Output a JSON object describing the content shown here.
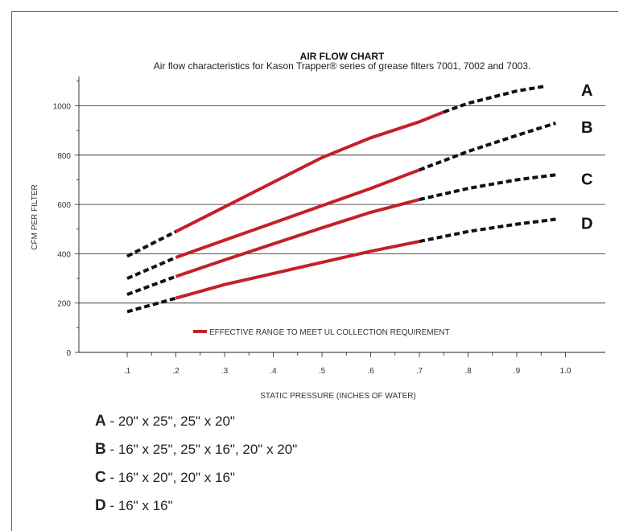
{
  "chart_data": {
    "type": "line",
    "title": "AIR FLOW CHART",
    "subtitle": "Air flow characteristics for Kason Trapper® series of grease filters 7001, 7002 and 7003.",
    "xlabel": "STATIC PRESSURE (INCHES OF WATER)",
    "ylabel": "CFM PER FILTER",
    "xlim": [
      0,
      1.1
    ],
    "ylim": [
      0,
      1100
    ],
    "x_ticks": [
      0.1,
      0.2,
      0.3,
      0.4,
      0.5,
      0.6,
      0.7,
      0.8,
      0.9,
      1.0
    ],
    "x_tick_labels": [
      ".1",
      ".2",
      ".3",
      ".4",
      ".5",
      ".6",
      ".7",
      ".8",
      ".9",
      "1.0"
    ],
    "y_ticks": [
      0,
      200,
      400,
      600,
      800,
      1000
    ],
    "y_tick_labels": [
      "0",
      "200",
      "400",
      "600",
      "800",
      "1000"
    ],
    "grid": "horizontal",
    "legend": {
      "placement": "bottom-center",
      "label": "EFFECTIVE RANGE TO MEET UL COLLECTION REQUIREMENT",
      "color": "#c4202a"
    },
    "line_colors": {
      "effective": "#c4202a",
      "extended": "#111111"
    },
    "series": [
      {
        "name": "A",
        "x": [
          0.1,
          0.2,
          0.3,
          0.4,
          0.5,
          0.6,
          0.7,
          0.75,
          0.8,
          0.9,
          0.96
        ],
        "y": [
          390,
          490,
          590,
          690,
          790,
          870,
          935,
          975,
          1010,
          1060,
          1080
        ],
        "effective_range": [
          0.2,
          0.75
        ]
      },
      {
        "name": "B",
        "x": [
          0.1,
          0.2,
          0.3,
          0.4,
          0.5,
          0.6,
          0.7,
          0.8,
          0.9,
          0.98
        ],
        "y": [
          300,
          385,
          455,
          525,
          595,
          665,
          740,
          815,
          880,
          930
        ],
        "effective_range": [
          0.2,
          0.7
        ]
      },
      {
        "name": "C",
        "x": [
          0.1,
          0.2,
          0.3,
          0.4,
          0.5,
          0.6,
          0.7,
          0.8,
          0.9,
          0.98
        ],
        "y": [
          235,
          308,
          375,
          440,
          505,
          568,
          620,
          665,
          700,
          720
        ],
        "effective_range": [
          0.2,
          0.7
        ]
      },
      {
        "name": "D",
        "x": [
          0.1,
          0.2,
          0.3,
          0.4,
          0.5,
          0.6,
          0.7,
          0.8,
          0.9,
          0.98
        ],
        "y": [
          165,
          220,
          275,
          320,
          365,
          410,
          450,
          490,
          520,
          540
        ],
        "effective_range": [
          0.2,
          0.7
        ]
      }
    ]
  },
  "sizes": [
    {
      "letter": "A",
      "text": " - 20\" x 25\", 25\" x 20\""
    },
    {
      "letter": "B",
      "text": " - 16\" x 25\", 25\" x 16\", 20\" x 20\""
    },
    {
      "letter": "C",
      "text": " - 16\" x 20\", 20\" x 16\""
    },
    {
      "letter": "D",
      "text": " - 16\" x 16\""
    }
  ]
}
